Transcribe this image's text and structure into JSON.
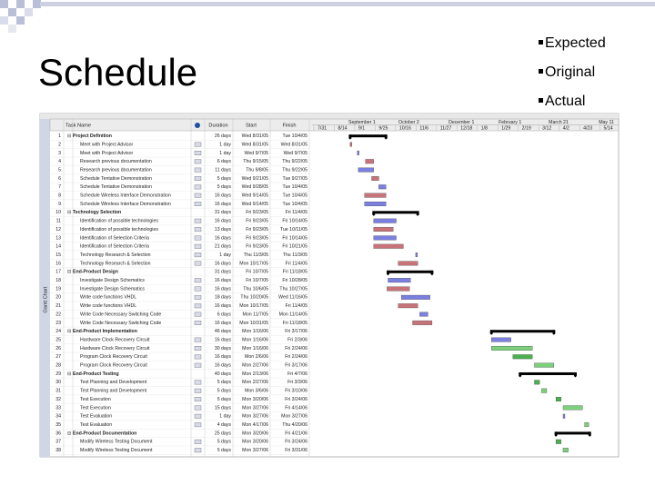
{
  "slide": {
    "title": "Schedule",
    "bullets": [
      "Expected",
      "Original",
      "Actual"
    ]
  },
  "gantt": {
    "side_label": "Gantt Chart",
    "columns": {
      "name": "Task Name",
      "duration": "Duration",
      "start": "Start",
      "finish": "Finish"
    },
    "timeline": {
      "top": [
        "September 1",
        "October 2",
        "December 1",
        "February 1",
        "March 21",
        "May 11"
      ],
      "bottom": [
        "7/31",
        "8/14",
        "9/1",
        "9/25",
        "10/16",
        "11/6",
        "11/27",
        "12/18",
        "1/8",
        "1/29",
        "2/19",
        "3/12",
        "4/2",
        "4/23",
        "5/14"
      ]
    },
    "rows": [
      {
        "id": 1,
        "name": "Project Definition",
        "duration": "26 days",
        "start": "Wed 8/31/05",
        "finish": "Tue 10/4/05",
        "summary": true,
        "color": "#000000"
      },
      {
        "id": 2,
        "name": "Meet with Project Advisor",
        "duration": "1 day",
        "start": "Wed 8/31/05",
        "finish": "Wed 8/31/05",
        "color": "#c8737a"
      },
      {
        "id": 3,
        "name": "Meet with Project Advisor",
        "duration": "1 day",
        "start": "Wed 9/7/05",
        "finish": "Wed 9/7/05",
        "color": "#7b7fe0"
      },
      {
        "id": 4,
        "name": "Research previous documentation",
        "duration": "6 days",
        "start": "Thu 9/15/05",
        "finish": "Thu 9/22/05",
        "color": "#c8737a"
      },
      {
        "id": 5,
        "name": "Research previous documentation",
        "duration": "11 days",
        "start": "Thu 9/8/05",
        "finish": "Thu 9/22/05",
        "color": "#7b7fe0"
      },
      {
        "id": 6,
        "name": "Schedule Tentative Demonstration",
        "duration": "5 days",
        "start": "Wed 9/21/05",
        "finish": "Tue 9/27/05",
        "color": "#c8737a"
      },
      {
        "id": 7,
        "name": "Schedule Tentative Demonstration",
        "duration": "5 days",
        "start": "Wed 9/28/05",
        "finish": "Tue 10/4/05",
        "color": "#7b7fe0"
      },
      {
        "id": 8,
        "name": "Schedule Wireless Interface Demonstration",
        "duration": "16 days",
        "start": "Wed 9/14/05",
        "finish": "Tue 10/4/05",
        "color": "#c8737a"
      },
      {
        "id": 9,
        "name": "Schedule Wireless Interface Demonstration",
        "duration": "16 days",
        "start": "Wed 9/14/05",
        "finish": "Tue 10/4/05",
        "color": "#7b7fe0"
      },
      {
        "id": 10,
        "name": "Technology Selection",
        "duration": "31 days",
        "start": "Fri 9/23/05",
        "finish": "Fri 11/4/05",
        "summary": true,
        "color": "#000000"
      },
      {
        "id": 11,
        "name": "Identification of possible technologies",
        "duration": "16 days",
        "start": "Fri 9/23/05",
        "finish": "Fri 10/14/05",
        "color": "#7b7fe0"
      },
      {
        "id": 12,
        "name": "Identification of possible technologies",
        "duration": "13 days",
        "start": "Fri 9/23/05",
        "finish": "Tue 10/11/05",
        "color": "#c8737a"
      },
      {
        "id": 13,
        "name": "Identification of Selection Criteria",
        "duration": "16 days",
        "start": "Fri 9/23/05",
        "finish": "Fri 10/14/05",
        "color": "#7b7fe0"
      },
      {
        "id": 14,
        "name": "Identification of Selection Criteria",
        "duration": "21 days",
        "start": "Fri 9/23/05",
        "finish": "Fri 10/21/05",
        "color": "#c8737a"
      },
      {
        "id": 15,
        "name": "Technology Research & Selection",
        "duration": "1 day",
        "start": "Thu 11/3/05",
        "finish": "Thu 11/3/05",
        "color": "#7b7fe0"
      },
      {
        "id": 16,
        "name": "Technology Research & Selection",
        "duration": "16 days",
        "start": "Mon 10/17/05",
        "finish": "Fri 11/4/05",
        "color": "#c8737a"
      },
      {
        "id": 17,
        "name": "End-Product Design",
        "duration": "31 days",
        "start": "Fri 10/7/05",
        "finish": "Fri 11/18/05",
        "summary": true,
        "color": "#000000"
      },
      {
        "id": 18,
        "name": "Investigate Design Schematics",
        "duration": "16 days",
        "start": "Fri 10/7/05",
        "finish": "Fri 10/28/05",
        "color": "#7b7fe0"
      },
      {
        "id": 19,
        "name": "Investigate Design Schematics",
        "duration": "16 days",
        "start": "Thu 10/6/05",
        "finish": "Thu 10/27/05",
        "color": "#c8737a"
      },
      {
        "id": 20,
        "name": "Write code functions VHDL",
        "duration": "18 days",
        "start": "Thu 10/20/05",
        "finish": "Wed 11/16/05",
        "color": "#7b7fe0"
      },
      {
        "id": 21,
        "name": "Write code functions VHDL",
        "duration": "16 days",
        "start": "Mon 10/17/05",
        "finish": "Fri 11/4/05",
        "color": "#c8737a"
      },
      {
        "id": 22,
        "name": "Write Code Necessary Switching Code",
        "duration": "6 days",
        "start": "Mon 11/7/05",
        "finish": "Mon 11/14/05",
        "color": "#7b7fe0"
      },
      {
        "id": 23,
        "name": "Write Code Necessary Switching Code",
        "duration": "16 days",
        "start": "Mon 10/31/05",
        "finish": "Fri 11/18/05",
        "color": "#c8737a"
      },
      {
        "id": 24,
        "name": "End-Product Implementation",
        "duration": "46 days",
        "start": "Mon 1/16/06",
        "finish": "Fri 3/17/06",
        "summary": true,
        "color": "#000000"
      },
      {
        "id": 25,
        "name": "Hardware Clock Recovery Circuit",
        "duration": "16 days",
        "start": "Mon 1/16/06",
        "finish": "Fri 2/3/06",
        "color": "#7b7fe0"
      },
      {
        "id": 26,
        "name": "Hardware Clock Recovery Circuit",
        "duration": "30 days",
        "start": "Mon 1/16/06",
        "finish": "Fri 2/24/06",
        "color": "#7cd07c"
      },
      {
        "id": 27,
        "name": "Program Clock Recovery Circuit",
        "duration": "16 days",
        "start": "Mon 2/6/06",
        "finish": "Fri 2/24/06",
        "color": "#4caf50"
      },
      {
        "id": 28,
        "name": "Program Clock Recovery Circuit",
        "duration": "16 days",
        "start": "Mon 2/27/06",
        "finish": "Fri 3/17/06",
        "color": "#7cd07c"
      },
      {
        "id": 29,
        "name": "End-Product Testing",
        "duration": "40 days",
        "start": "Mon 2/13/06",
        "finish": "Fri 4/7/06",
        "summary": true,
        "color": "#000000"
      },
      {
        "id": 30,
        "name": "Test Planning and Development",
        "duration": "5 days",
        "start": "Mon 2/27/06",
        "finish": "Fri 3/3/06",
        "color": "#4caf50"
      },
      {
        "id": 31,
        "name": "Test Planning and Development",
        "duration": "5 days",
        "start": "Mon 3/6/06",
        "finish": "Fri 3/10/06",
        "color": "#7cd07c"
      },
      {
        "id": 32,
        "name": "Test Execution",
        "duration": "5 days",
        "start": "Mon 3/20/06",
        "finish": "Fri 3/24/06",
        "color": "#4caf50"
      },
      {
        "id": 33,
        "name": "Test Execution",
        "duration": "15 days",
        "start": "Mon 3/27/06",
        "finish": "Fri 4/14/06",
        "color": "#7cd07c"
      },
      {
        "id": 34,
        "name": "Test Evaluation",
        "duration": "1 day",
        "start": "Mon 3/27/06",
        "finish": "Mon 3/27/06",
        "color": "#7b7fe0"
      },
      {
        "id": 35,
        "name": "Test Evaluation",
        "duration": "4 days",
        "start": "Mon 4/17/06",
        "finish": "Thu 4/20/06",
        "color": "#7cd07c"
      },
      {
        "id": 36,
        "name": "End-Product Documentation",
        "duration": "25 days",
        "start": "Mon 3/20/06",
        "finish": "Fri 4/21/06",
        "summary": true,
        "color": "#000000"
      },
      {
        "id": 37,
        "name": "Modify Wireless Testing Document",
        "duration": "5 days",
        "start": "Mon 3/20/06",
        "finish": "Fri 3/24/06",
        "color": "#4caf50"
      },
      {
        "id": 38,
        "name": "Modify Wireless Testing Document",
        "duration": "5 days",
        "start": "Mon 3/27/06",
        "finish": "Fri 3/31/06",
        "color": "#7cd07c"
      }
    ]
  }
}
